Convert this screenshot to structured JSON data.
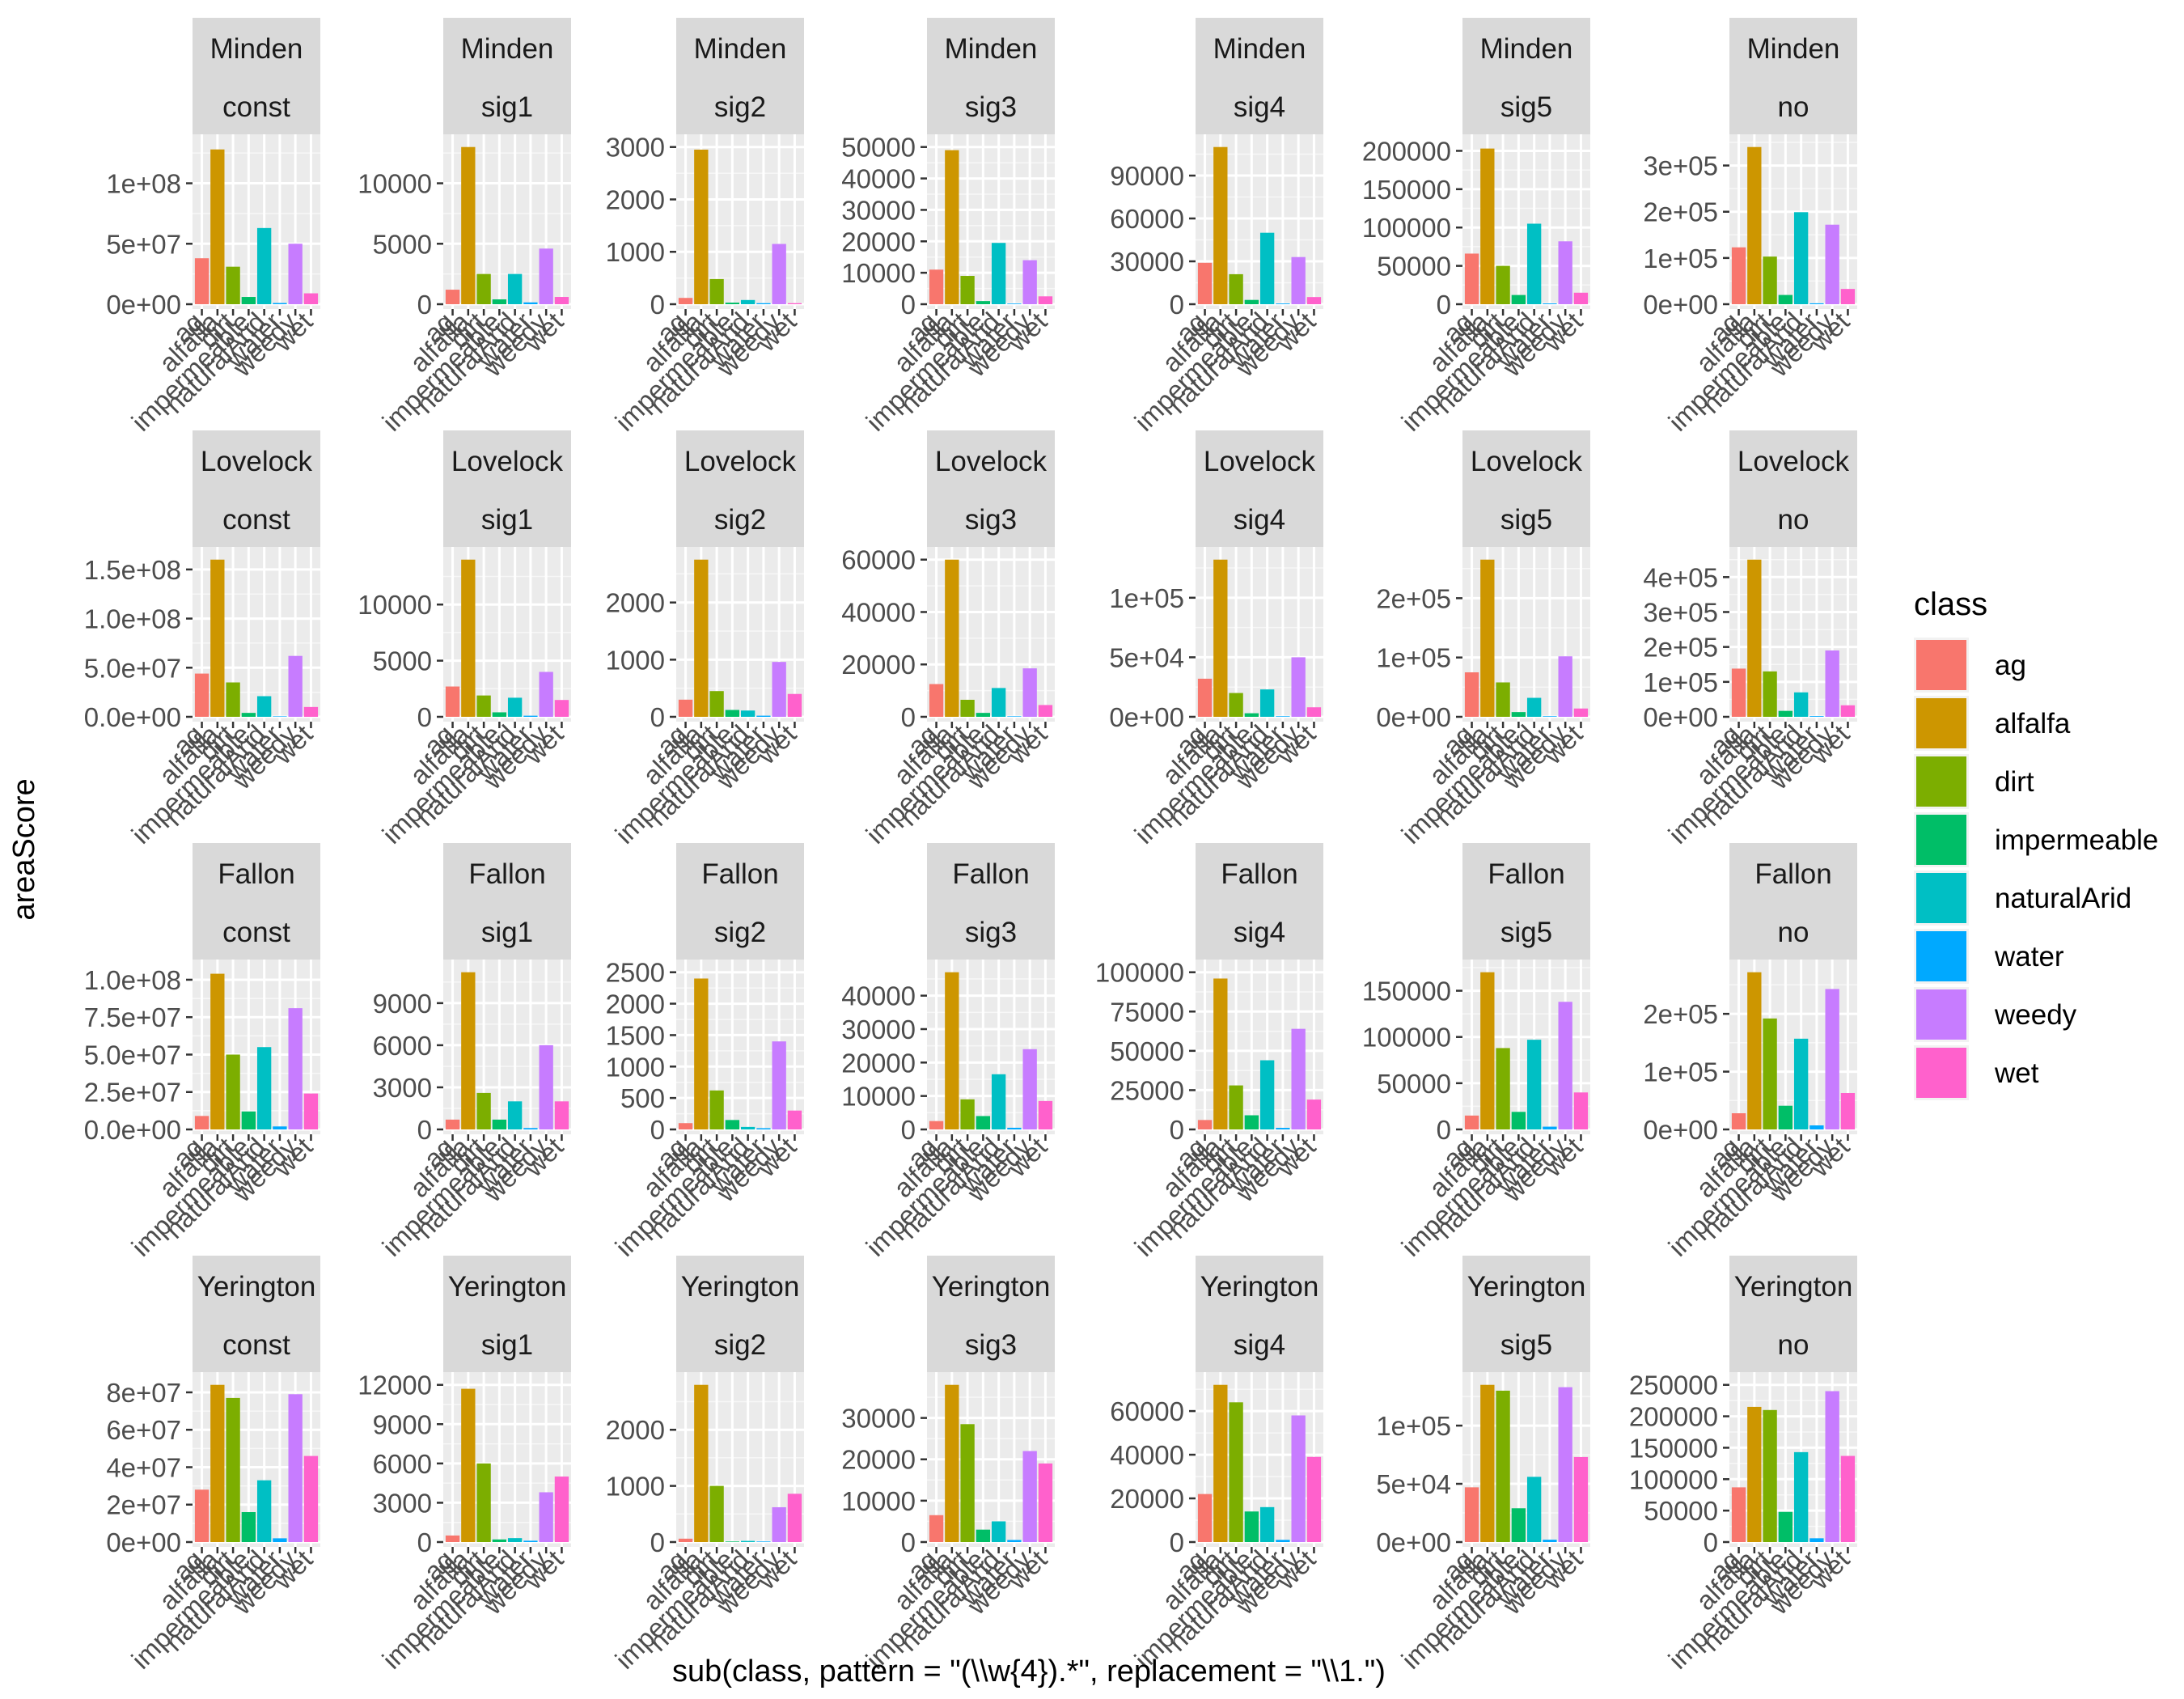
{
  "chart_data": {
    "type": "bar",
    "ylabel": "areaScore",
    "xlabel": "sub(class, pattern = \"(\\\\w{4}).*\", replacement = \"\\\\1.\")",
    "x_tick_labels": [
      "ag",
      "alfalfa",
      "dirt",
      "impermeable",
      "naturalArid",
      "water",
      "weedy",
      "wet"
    ],
    "categories": [
      "ag",
      "alfalfa",
      "dirt",
      "impermeable",
      "naturalArid",
      "water",
      "weedy",
      "wet"
    ],
    "colors": [
      "#F8766D",
      "#CD9600",
      "#7CAE00",
      "#00BE67",
      "#00BFC4",
      "#00A9FF",
      "#C77CFF",
      "#FF61CC"
    ],
    "legend": {
      "title": "class",
      "position": "right",
      "items": [
        "ag",
        "alfalfa",
        "dirt",
        "impermeable",
        "naturalArid",
        "water",
        "weedy",
        "wet"
      ]
    },
    "grid": true,
    "facets": [
      {
        "site": "Minden",
        "method": "const",
        "ylim": [
          0,
          130000000
        ],
        "ticks": [
          0,
          50000000,
          100000000
        ],
        "tick_labels": [
          "0e+00",
          "5e+07",
          "1e+08"
        ],
        "values": [
          38000000,
          128000000,
          31000000,
          6000000,
          63000000,
          1000000,
          50000000,
          9000000
        ]
      },
      {
        "site": "Minden",
        "method": "sig1",
        "ylim": [
          0,
          13000
        ],
        "ticks": [
          0,
          5000,
          10000
        ],
        "tick_labels": [
          "0",
          "5000",
          "10000"
        ],
        "values": [
          1200,
          13000,
          2500,
          400,
          2500,
          150,
          4600,
          600
        ]
      },
      {
        "site": "Minden",
        "method": "sig2",
        "ylim": [
          0,
          3000
        ],
        "ticks": [
          0,
          1000,
          2000,
          3000
        ],
        "tick_labels": [
          "0",
          "1000",
          "2000",
          "3000"
        ],
        "values": [
          120,
          2950,
          480,
          30,
          80,
          20,
          1150,
          20
        ]
      },
      {
        "site": "Minden",
        "method": "sig3",
        "ylim": [
          0,
          50000
        ],
        "ticks": [
          0,
          10000,
          20000,
          30000,
          40000,
          50000
        ],
        "tick_labels": [
          "0",
          "10000",
          "20000",
          "30000",
          "40000",
          "50000"
        ],
        "values": [
          11000,
          49000,
          9000,
          1000,
          19500,
          200,
          14000,
          2500
        ]
      },
      {
        "site": "Minden",
        "method": "sig4",
        "ylim": [
          0,
          110000
        ],
        "ticks": [
          0,
          30000,
          60000,
          90000
        ],
        "tick_labels": [
          "0",
          "30000",
          "60000",
          "90000"
        ],
        "values": [
          29000,
          110000,
          21000,
          3000,
          50000,
          500,
          33000,
          5000
        ]
      },
      {
        "site": "Minden",
        "method": "sig5",
        "ylim": [
          0,
          205000
        ],
        "ticks": [
          0,
          50000,
          100000,
          150000,
          200000
        ],
        "tick_labels": [
          "0",
          "50000",
          "100000",
          "150000",
          "200000"
        ],
        "values": [
          66000,
          203000,
          50000,
          12000,
          105000,
          1000,
          82000,
          15000
        ]
      },
      {
        "site": "Minden",
        "method": "no",
        "ylim": [
          0,
          340000
        ],
        "ticks": [
          0,
          100000,
          200000,
          300000
        ],
        "tick_labels": [
          "0e+00",
          "1e+05",
          "2e+05",
          "3e+05"
        ],
        "values": [
          123000,
          340000,
          103000,
          20000,
          199000,
          2000,
          172000,
          33000
        ]
      },
      {
        "site": "Lovelock",
        "method": "const",
        "ylim": [
          0,
          160000000
        ],
        "ticks": [
          0,
          50000000,
          100000000,
          150000000
        ],
        "tick_labels": [
          "0.0e+00",
          "5.0e+07",
          "1.0e+08",
          "1.5e+08"
        ],
        "values": [
          44000000,
          160000000,
          35000000,
          4000000,
          21000000,
          500000,
          62000000,
          10000000
        ]
      },
      {
        "site": "Lovelock",
        "method": "sig1",
        "ylim": [
          0,
          14000
        ],
        "ticks": [
          0,
          5000,
          10000
        ],
        "tick_labels": [
          "0",
          "5000",
          "10000"
        ],
        "values": [
          2700,
          14000,
          1900,
          400,
          1700,
          100,
          4000,
          1500
        ]
      },
      {
        "site": "Lovelock",
        "method": "sig2",
        "ylim": [
          0,
          2750
        ],
        "ticks": [
          0,
          1000,
          2000
        ],
        "tick_labels": [
          "0",
          "1000",
          "2000"
        ],
        "values": [
          300,
          2750,
          450,
          120,
          110,
          20,
          960,
          400
        ]
      },
      {
        "site": "Lovelock",
        "method": "sig3",
        "ylim": [
          0,
          60000
        ],
        "ticks": [
          0,
          20000,
          40000,
          60000
        ],
        "tick_labels": [
          "0",
          "20000",
          "40000",
          "60000"
        ],
        "values": [
          12500,
          60000,
          6500,
          1500,
          11000,
          200,
          18500,
          4500
        ]
      },
      {
        "site": "Lovelock",
        "method": "sig4",
        "ylim": [
          0,
          132000
        ],
        "ticks": [
          0,
          50000,
          100000
        ],
        "tick_labels": [
          "0e+00",
          "5e+04",
          "1e+05"
        ],
        "values": [
          32000,
          132000,
          20000,
          3000,
          23000,
          500,
          50000,
          8000
        ]
      },
      {
        "site": "Lovelock",
        "method": "sig5",
        "ylim": [
          0,
          265000
        ],
        "ticks": [
          0,
          100000,
          200000
        ],
        "tick_labels": [
          "0e+00",
          "1e+05",
          "2e+05"
        ],
        "values": [
          75000,
          265000,
          58000,
          8000,
          32000,
          1000,
          102000,
          14000
        ]
      },
      {
        "site": "Lovelock",
        "method": "no",
        "ylim": [
          0,
          450000
        ],
        "ticks": [
          0,
          100000,
          200000,
          300000,
          400000
        ],
        "tick_labels": [
          "0e+00",
          "1e+05",
          "2e+05",
          "3e+05",
          "4e+05"
        ],
        "values": [
          138000,
          450000,
          130000,
          17000,
          70000,
          2000,
          190000,
          33000
        ]
      },
      {
        "site": "Fallon",
        "method": "const",
        "ylim": [
          0,
          105000000
        ],
        "ticks": [
          0,
          25000000,
          50000000,
          75000000,
          100000000
        ],
        "tick_labels": [
          "0.0e+00",
          "2.5e+07",
          "5.0e+07",
          "7.5e+07",
          "1.0e+08"
        ],
        "values": [
          9000000,
          104000000,
          50000000,
          12000000,
          55000000,
          2000000,
          81000000,
          24000000
        ]
      },
      {
        "site": "Fallon",
        "method": "sig1",
        "ylim": [
          0,
          11200
        ],
        "ticks": [
          0,
          3000,
          6000,
          9000
        ],
        "tick_labels": [
          "0",
          "3000",
          "6000",
          "9000"
        ],
        "values": [
          700,
          11200,
          2600,
          700,
          2000,
          100,
          6000,
          2000
        ]
      },
      {
        "site": "Fallon",
        "method": "sig2",
        "ylim": [
          0,
          2500
        ],
        "ticks": [
          0,
          500,
          1000,
          1500,
          2000,
          2500
        ],
        "tick_labels": [
          "0",
          "500",
          "1000",
          "1500",
          "2000",
          "2500"
        ],
        "values": [
          100,
          2400,
          620,
          150,
          40,
          20,
          1400,
          300
        ]
      },
      {
        "site": "Fallon",
        "method": "sig3",
        "ylim": [
          0,
          47000
        ],
        "ticks": [
          0,
          10000,
          20000,
          30000,
          40000
        ],
        "tick_labels": [
          "0",
          "10000",
          "20000",
          "30000",
          "40000"
        ],
        "values": [
          2500,
          47000,
          9000,
          4000,
          16500,
          500,
          24000,
          8500
        ]
      },
      {
        "site": "Fallon",
        "method": "sig4",
        "ylim": [
          0,
          100000
        ],
        "ticks": [
          0,
          25000,
          50000,
          75000,
          100000
        ],
        "tick_labels": [
          "0",
          "25000",
          "50000",
          "75000",
          "100000"
        ],
        "values": [
          6000,
          96000,
          28000,
          9000,
          44000,
          1000,
          64000,
          19000
        ]
      },
      {
        "site": "Fallon",
        "method": "sig5",
        "ylim": [
          0,
          170000
        ],
        "ticks": [
          0,
          50000,
          100000,
          150000
        ],
        "tick_labels": [
          "0",
          "50000",
          "100000",
          "150000"
        ],
        "values": [
          15000,
          170000,
          88000,
          19000,
          97000,
          3000,
          138000,
          40000
        ]
      },
      {
        "site": "Fallon",
        "method": "no",
        "ylim": [
          0,
          272000
        ],
        "ticks": [
          0,
          100000,
          200000
        ],
        "tick_labels": [
          "0e+00",
          "1e+05",
          "2e+05"
        ],
        "values": [
          28000,
          272000,
          192000,
          41000,
          157000,
          7000,
          243000,
          63000
        ]
      },
      {
        "site": "Yerington",
        "method": "const",
        "ylim": [
          0,
          84000000
        ],
        "ticks": [
          0,
          20000000,
          40000000,
          60000000,
          80000000
        ],
        "tick_labels": [
          "0e+00",
          "2e+07",
          "4e+07",
          "6e+07",
          "8e+07"
        ],
        "values": [
          28000000,
          84000000,
          77000000,
          16000000,
          33000000,
          2000000,
          79000000,
          46000000
        ]
      },
      {
        "site": "Yerington",
        "method": "sig1",
        "ylim": [
          0,
          12000
        ],
        "ticks": [
          0,
          3000,
          6000,
          9000,
          12000
        ],
        "tick_labels": [
          "0",
          "3000",
          "6000",
          "9000",
          "12000"
        ],
        "values": [
          500,
          11700,
          6000,
          200,
          300,
          100,
          3800,
          5000
        ]
      },
      {
        "site": "Yerington",
        "method": "sig2",
        "ylim": [
          0,
          2800
        ],
        "ticks": [
          0,
          1000,
          2000
        ],
        "tick_labels": [
          "0",
          "1000",
          "2000"
        ],
        "values": [
          60,
          2800,
          1000,
          10,
          20,
          10,
          620,
          860
        ]
      },
      {
        "site": "Yerington",
        "method": "sig3",
        "ylim": [
          0,
          38000
        ],
        "ticks": [
          0,
          10000,
          20000,
          30000
        ],
        "tick_labels": [
          "0",
          "10000",
          "20000",
          "30000"
        ],
        "values": [
          6500,
          38000,
          28500,
          3000,
          5000,
          500,
          22000,
          19000
        ]
      },
      {
        "site": "Yerington",
        "method": "sig4",
        "ylim": [
          0,
          72000
        ],
        "ticks": [
          0,
          20000,
          40000,
          60000
        ],
        "tick_labels": [
          "0",
          "20000",
          "40000",
          "60000"
        ],
        "values": [
          22000,
          72000,
          64000,
          14000,
          16000,
          1000,
          58000,
          39000
        ]
      },
      {
        "site": "Yerington",
        "method": "sig5",
        "ylim": [
          0,
          135000
        ],
        "ticks": [
          0,
          50000,
          100000
        ],
        "tick_labels": [
          "0e+00",
          "5e+04",
          "1e+05"
        ],
        "values": [
          47000,
          135000,
          130000,
          29000,
          56000,
          2000,
          133000,
          73000
        ]
      },
      {
        "site": "Yerington",
        "method": "no",
        "ylim": [
          0,
          250000
        ],
        "ticks": [
          0,
          50000,
          100000,
          150000,
          200000,
          250000
        ],
        "tick_labels": [
          "0",
          "50000",
          "100000",
          "150000",
          "200000",
          "250000"
        ],
        "values": [
          87000,
          215000,
          210000,
          48000,
          143000,
          6000,
          240000,
          137000
        ]
      }
    ]
  }
}
